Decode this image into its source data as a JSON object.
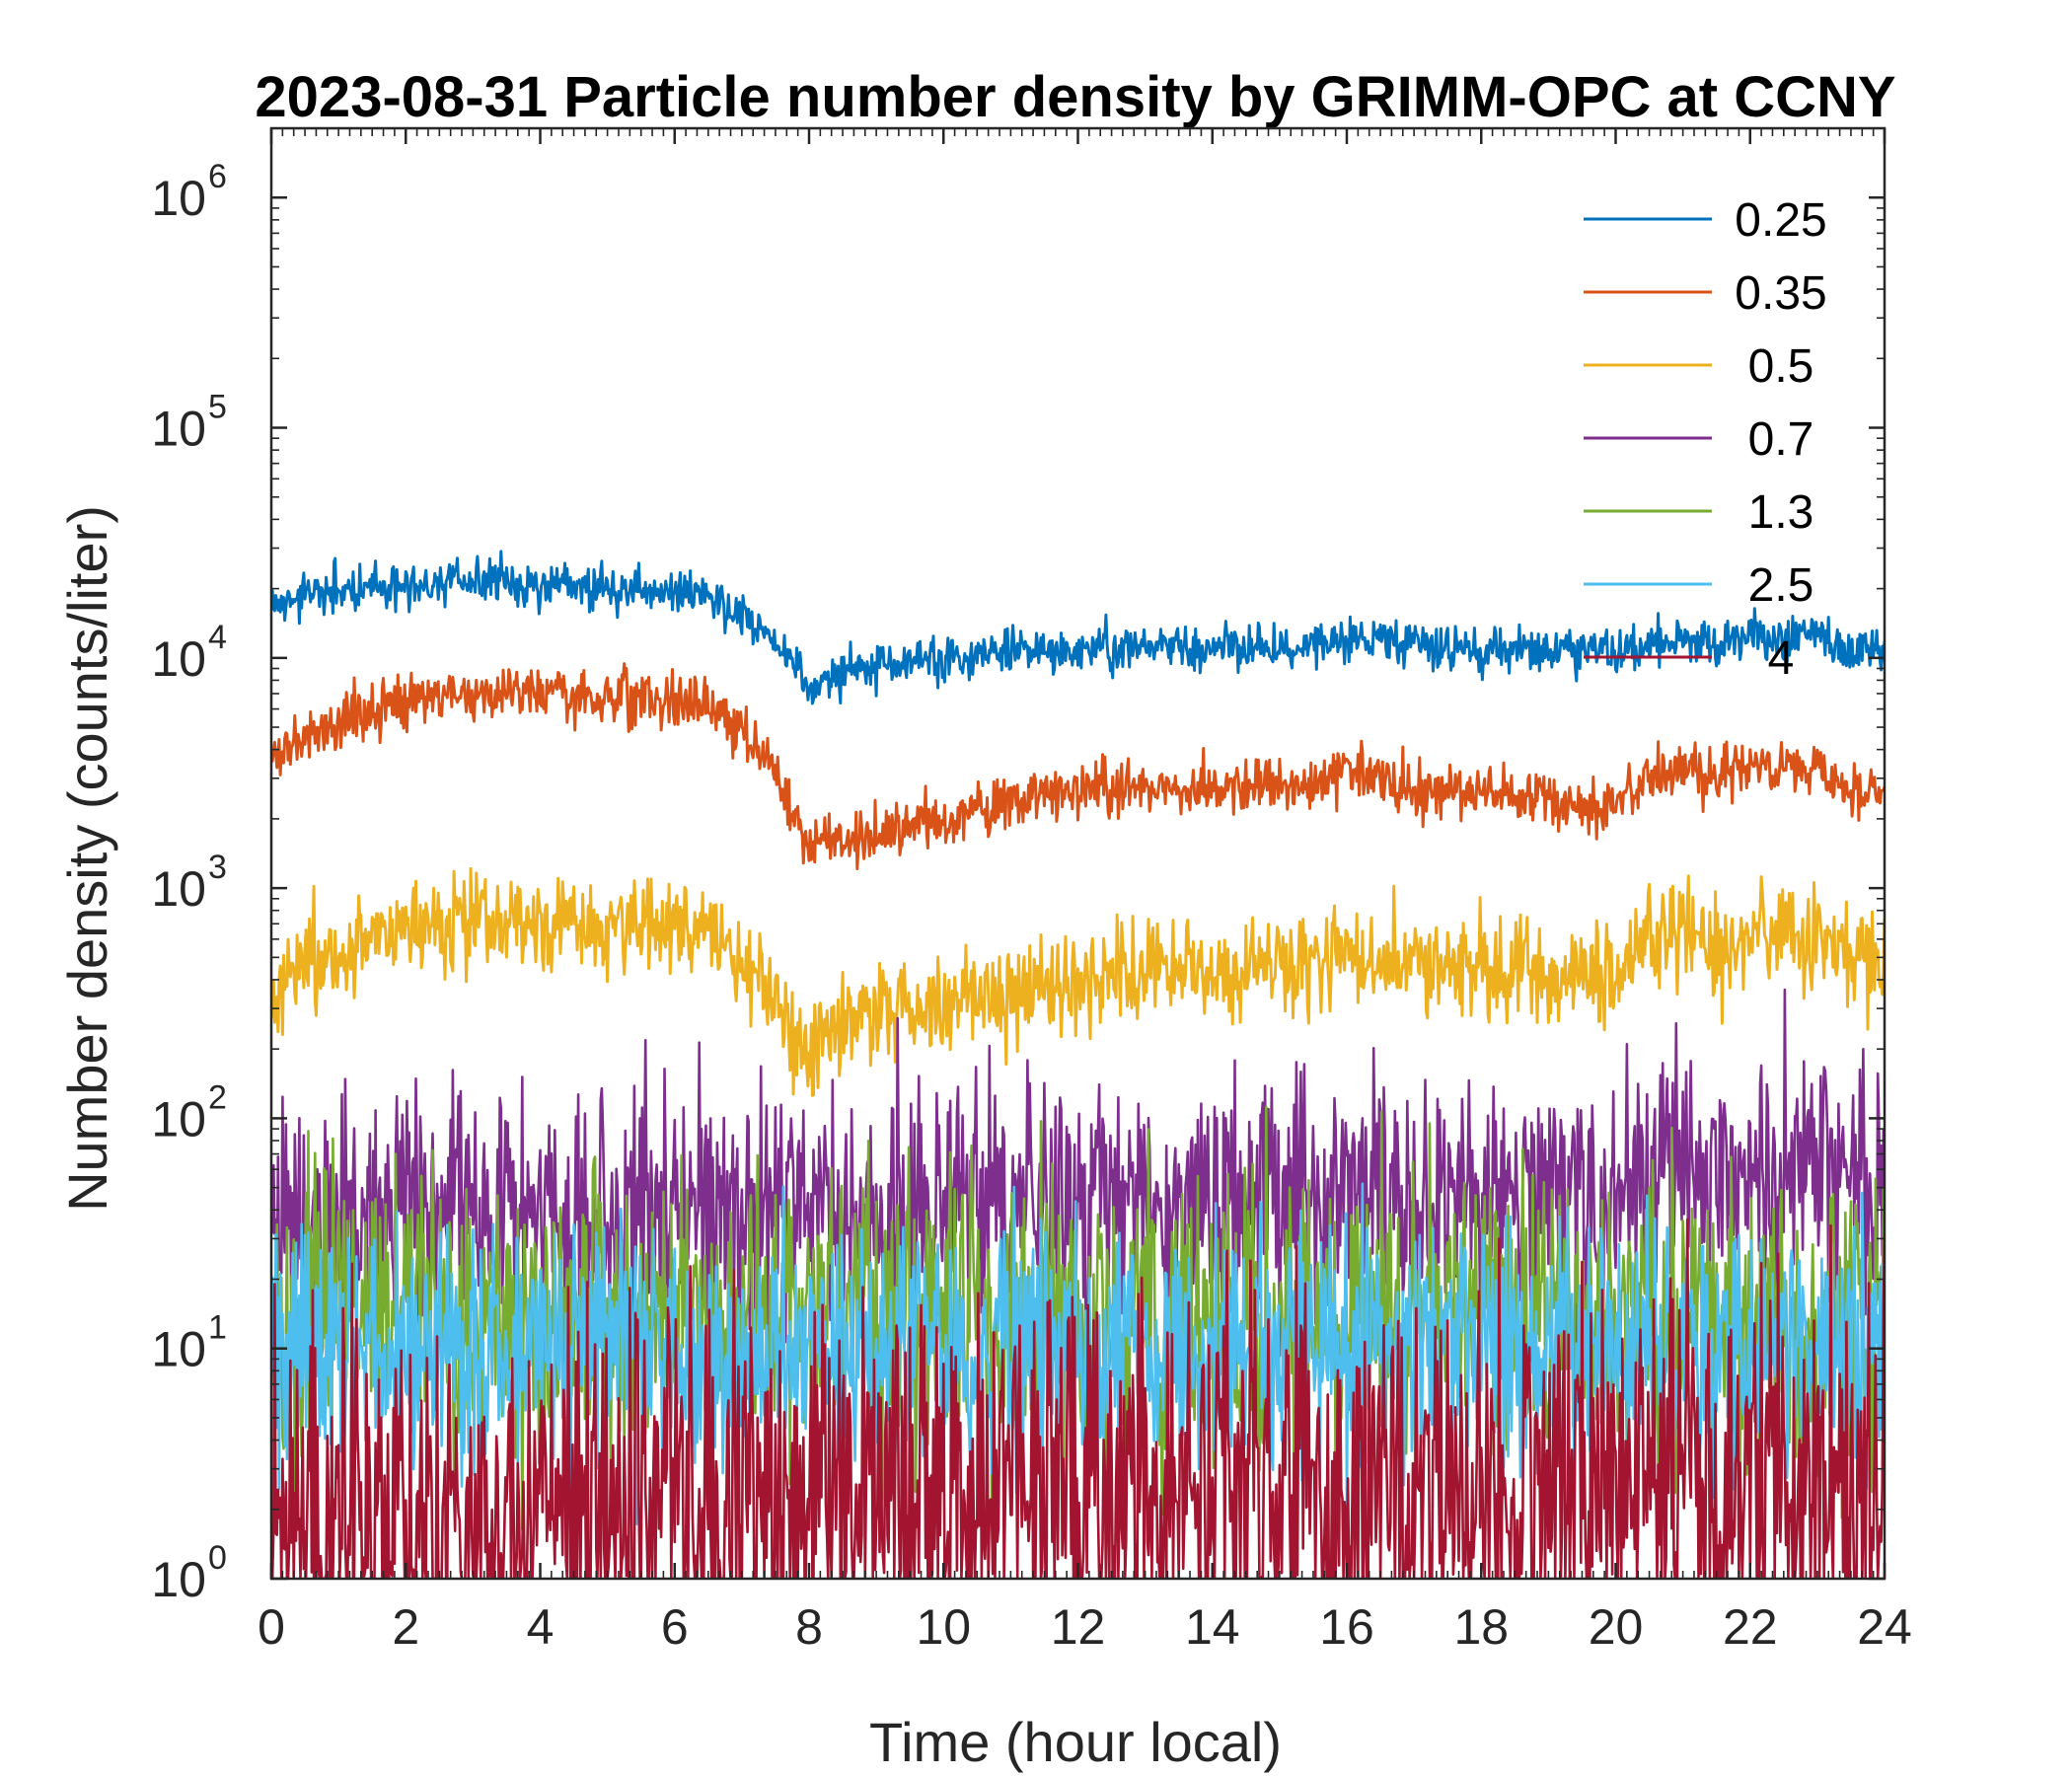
{
  "chart_data": {
    "type": "line",
    "title": "2023-08-31 Particle number density by GRIMM-OPC at CCNY",
    "xlabel": "Time (hour local)",
    "ylabel": "Number density (counts/liter)",
    "xlim": [
      0,
      24
    ],
    "ylim": [
      1,
      2000000
    ],
    "yscale": "log",
    "xticks": [
      "0",
      "2",
      "4",
      "6",
      "8",
      "10",
      "12",
      "14",
      "16",
      "18",
      "20",
      "22",
      "24"
    ],
    "yticks": [
      {
        "base": "10",
        "exp": "0"
      },
      {
        "base": "10",
        "exp": "1"
      },
      {
        "base": "10",
        "exp": "2"
      },
      {
        "base": "10",
        "exp": "3"
      },
      {
        "base": "10",
        "exp": "4"
      },
      {
        "base": "10",
        "exp": "5"
      },
      {
        "base": "10",
        "exp": "6"
      }
    ],
    "grid": false,
    "legend_position": "top-right",
    "x": [
      0,
      0.5,
      1,
      1.5,
      2,
      2.5,
      3,
      3.5,
      4,
      4.5,
      5,
      5.5,
      6,
      6.5,
      7,
      7.5,
      8,
      8.5,
      9,
      9.5,
      10,
      10.5,
      11,
      11.5,
      12,
      12.5,
      13,
      13.5,
      14,
      14.5,
      15,
      15.5,
      16,
      16.5,
      17,
      17.5,
      18,
      18.5,
      19,
      19.5,
      20,
      20.5,
      21,
      21.5,
      22,
      22.5,
      23,
      23.5,
      24
    ],
    "series": [
      {
        "name": "0.25",
        "color": "#0072BD",
        "noise": 0.05,
        "values": [
          17000,
          18500,
          19500,
          20500,
          21000,
          21200,
          21500,
          21200,
          21000,
          20800,
          20500,
          20000,
          19500,
          19000,
          15000,
          12000,
          7500,
          8500,
          9000,
          9500,
          10000,
          10200,
          10500,
          10800,
          10800,
          11000,
          11000,
          11200,
          11200,
          11200,
          11000,
          11500,
          12000,
          12000,
          11500,
          11000,
          11000,
          11000,
          11000,
          11000,
          10500,
          11500,
          12000,
          11500,
          12500,
          12000,
          12500,
          11000,
          10500
        ]
      },
      {
        "name": "0.35",
        "color": "#D95319",
        "noise": 0.06,
        "values": [
          3700,
          4500,
          5200,
          6000,
          6500,
          7000,
          7000,
          7000,
          6800,
          6800,
          6800,
          6700,
          6600,
          6500,
          5000,
          3200,
          1500,
          1600,
          1700,
          1900,
          2000,
          2100,
          2300,
          2500,
          2600,
          2700,
          2700,
          2700,
          2800,
          2800,
          2800,
          2800,
          3300,
          3000,
          2700,
          2600,
          2600,
          2500,
          2500,
          2200,
          2300,
          3000,
          3500,
          3000,
          3500,
          3300,
          3200,
          2600,
          2600
        ]
      },
      {
        "name": "0.5",
        "color": "#EDB120",
        "noise": 0.11,
        "values": [
          330,
          450,
          520,
          620,
          680,
          700,
          720,
          700,
          680,
          680,
          680,
          660,
          650,
          640,
          480,
          320,
          190,
          250,
          280,
          290,
          300,
          330,
          360,
          380,
          400,
          420,
          420,
          420,
          440,
          440,
          450,
          450,
          500,
          520,
          480,
          460,
          450,
          440,
          430,
          400,
          450,
          620,
          680,
          500,
          620,
          650,
          600,
          480,
          470
        ]
      },
      {
        "name": "0.7",
        "color": "#7E2F8E",
        "noise": 0.28,
        "values": [
          33,
          38,
          36,
          38,
          40,
          40,
          40,
          40,
          40,
          40,
          38,
          40,
          40,
          40,
          38,
          40,
          40,
          40,
          40,
          40,
          40,
          42,
          42,
          42,
          42,
          44,
          44,
          44,
          44,
          45,
          45,
          45,
          45,
          46,
          46,
          46,
          48,
          48,
          48,
          45,
          45,
          60,
          65,
          60,
          62,
          60,
          60,
          58,
          55
        ]
      },
      {
        "name": "1.3",
        "color": "#77AC30",
        "noise": 0.32,
        "values": [
          14,
          14,
          14,
          14,
          14,
          14,
          14,
          14,
          14,
          14,
          14,
          14,
          14,
          14,
          14,
          14,
          14,
          14,
          14,
          14,
          14,
          14,
          14,
          14,
          14,
          14,
          14,
          14,
          14,
          14,
          14,
          14,
          14,
          14,
          14,
          14,
          14,
          14,
          14,
          14,
          14,
          14,
          14,
          14,
          14,
          14,
          14,
          14,
          14
        ]
      },
      {
        "name": "2.5",
        "color": "#4DBEEE",
        "noise": 0.26,
        "values": [
          10,
          10,
          10,
          10,
          10,
          10,
          10,
          10,
          10,
          10,
          10,
          10,
          10,
          10,
          10,
          10,
          10,
          10,
          10,
          10,
          10,
          10,
          10,
          10,
          10,
          10,
          10,
          10,
          10,
          10,
          10,
          10,
          10,
          10,
          10,
          10,
          10,
          10,
          10,
          10,
          10,
          10,
          10,
          10,
          10,
          10,
          10,
          10,
          10
        ]
      },
      {
        "name": "4",
        "color": "#A2142F",
        "noise": 0.45,
        "values": [
          1.5,
          2,
          2,
          2,
          2,
          2,
          2,
          2,
          2,
          2,
          2,
          2,
          2,
          2,
          2,
          2,
          2,
          2,
          2.5,
          2.5,
          2.5,
          2.5,
          2.5,
          2.5,
          2.5,
          2.5,
          2.5,
          2.5,
          2.5,
          2.5,
          2.5,
          2.5,
          2.5,
          2.5,
          2.5,
          2.5,
          2.5,
          2.5,
          2.5,
          2.5,
          2.5,
          2.5,
          2.5,
          2.5,
          2.5,
          2.5,
          2.5,
          2.5,
          2.5
        ]
      }
    ]
  }
}
